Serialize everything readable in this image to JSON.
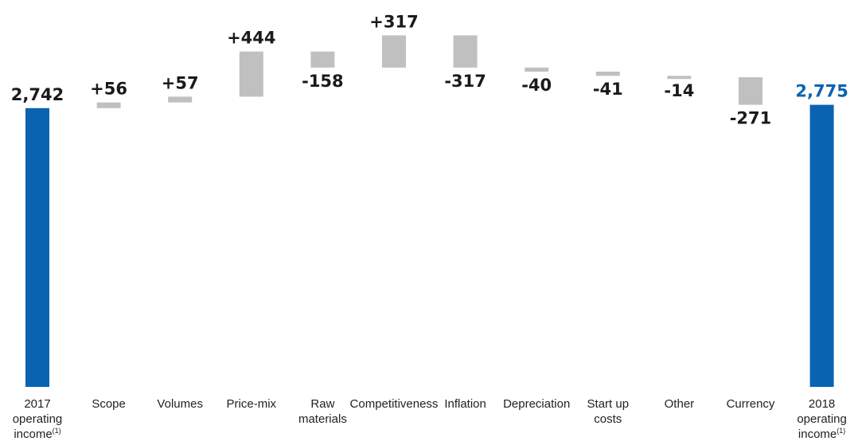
{
  "chart_data": {
    "type": "waterfall",
    "title": "",
    "xlabel": "",
    "ylabel": "",
    "ylim": [
      0,
      3200
    ],
    "grid": false,
    "categories": [
      [
        "2017",
        "operating",
        "income"
      ],
      [
        "Scope"
      ],
      [
        "Volumes"
      ],
      [
        "Price-mix"
      ],
      [
        "Raw",
        "materials"
      ],
      [
        "Competitiveness"
      ],
      [
        "Inflation"
      ],
      [
        "Depreciation"
      ],
      [
        "Start up",
        "costs"
      ],
      [
        "Other"
      ],
      [
        "Currency"
      ],
      [
        "2018",
        "operating",
        "income"
      ]
    ],
    "footnote_marker": "(1)",
    "values": [
      2742,
      56,
      57,
      444,
      -158,
      317,
      -317,
      -40,
      -41,
      -14,
      -271,
      2775
    ],
    "kinds": [
      "total",
      "delta",
      "delta",
      "delta",
      "delta",
      "delta",
      "delta",
      "delta",
      "delta",
      "delta",
      "delta",
      "total"
    ],
    "labels": [
      "2,742",
      "+56",
      "+57",
      "+444",
      "-158",
      "+317",
      "-317",
      "-40",
      "-41",
      "-14",
      "-271",
      "2,775"
    ],
    "colors": {
      "total": "#0a63b1",
      "delta": "#c0c0c0",
      "label_default": "#1a1a1a",
      "label_final": "#0a63b1"
    }
  }
}
